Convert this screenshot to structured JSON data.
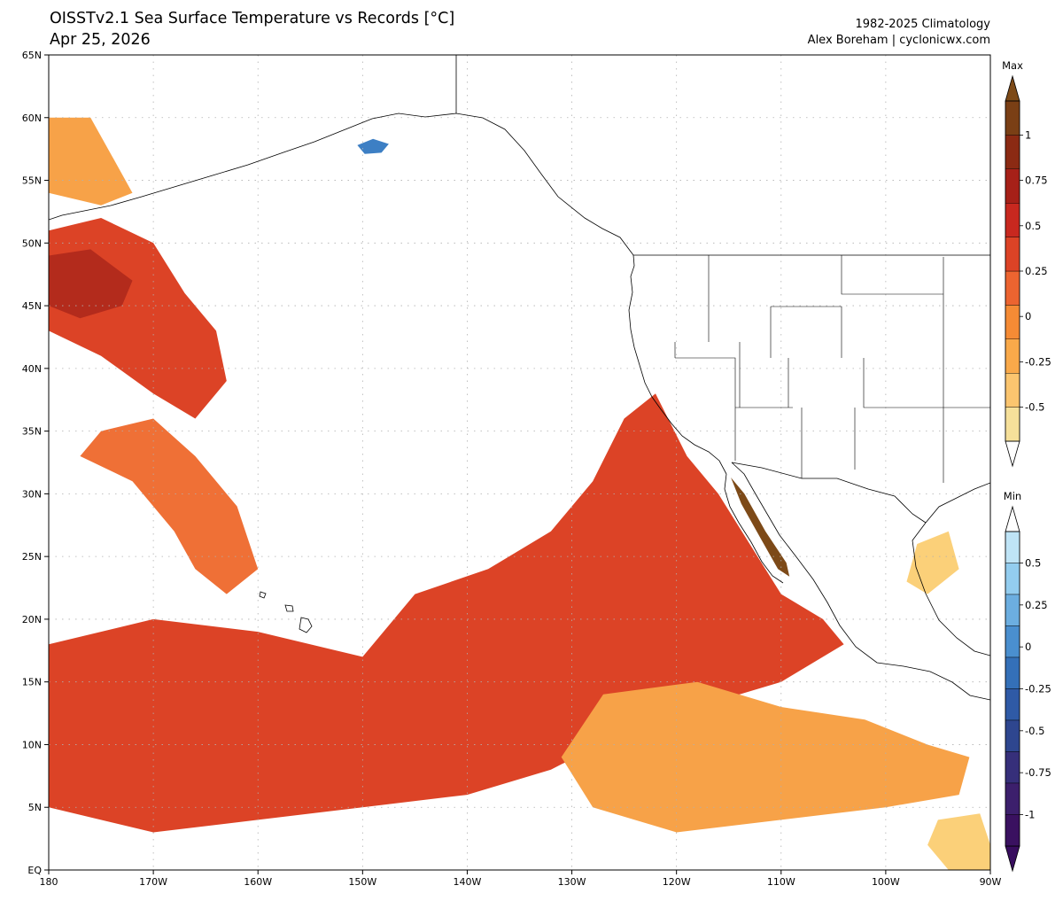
{
  "header": {
    "title": "OISSTv2.1 Sea Surface Temperature vs Records [°C]",
    "date": "Apr 25, 2026",
    "climatology": "1982-2025 Climatology",
    "credit": "Alex Boreham | cyclonicwx.com"
  },
  "map": {
    "projection": "equirectangular",
    "lon_range": [
      -180,
      -90
    ],
    "lat_range": [
      0,
      65
    ],
    "lat_ticks": [
      {
        "value": 65,
        "label": "65N"
      },
      {
        "value": 60,
        "label": "60N"
      },
      {
        "value": 55,
        "label": "55N"
      },
      {
        "value": 50,
        "label": "50N"
      },
      {
        "value": 45,
        "label": "45N"
      },
      {
        "value": 40,
        "label": "40N"
      },
      {
        "value": 35,
        "label": "35N"
      },
      {
        "value": 30,
        "label": "30N"
      },
      {
        "value": 25,
        "label": "25N"
      },
      {
        "value": 20,
        "label": "20N"
      },
      {
        "value": 15,
        "label": "15N"
      },
      {
        "value": 10,
        "label": "10N"
      },
      {
        "value": 5,
        "label": "5N"
      },
      {
        "value": 0,
        "label": "EQ"
      }
    ],
    "lon_ticks": [
      {
        "value": -180,
        "label": "180"
      },
      {
        "value": -170,
        "label": "170W"
      },
      {
        "value": -160,
        "label": "160W"
      },
      {
        "value": -150,
        "label": "150W"
      },
      {
        "value": -140,
        "label": "140W"
      },
      {
        "value": -130,
        "label": "130W"
      },
      {
        "value": -120,
        "label": "120W"
      },
      {
        "value": -110,
        "label": "110W"
      },
      {
        "value": -100,
        "label": "100W"
      },
      {
        "value": -90,
        "label": "90W"
      }
    ],
    "grid": "dotted",
    "regions": [
      {
        "name": "record-warm-mexico-coast",
        "level": "max",
        "shape": [
          [
            -127,
            27
          ],
          [
            -124,
            29
          ],
          [
            -121,
            29
          ],
          [
            -118,
            28
          ],
          [
            -115,
            26
          ],
          [
            -112,
            22
          ],
          [
            -111,
            20
          ],
          [
            -114,
            17
          ],
          [
            -118,
            16
          ],
          [
            -123,
            17
          ],
          [
            -128,
            20
          ],
          [
            -130,
            23
          ],
          [
            -129,
            26
          ]
        ]
      },
      {
        "name": "record-warm-central-pacific",
        "level": "max",
        "shape": [
          [
            -142,
            19
          ],
          [
            -140,
            20
          ],
          [
            -137,
            19
          ],
          [
            -135,
            17
          ],
          [
            -137,
            15.5
          ],
          [
            -141,
            16
          ]
        ]
      },
      {
        "name": "record-warm-gulf-of-california",
        "level": "max",
        "shape": [
          [
            -114.8,
            31.3
          ],
          [
            -113.5,
            30
          ],
          [
            -111.5,
            27
          ],
          [
            -109.5,
            24.5
          ],
          [
            -109.2,
            23.4
          ],
          [
            -110.3,
            24
          ],
          [
            -112,
            26.5
          ],
          [
            -113.8,
            29.2
          ]
        ]
      },
      {
        "name": "near-record-tropical-band",
        "level": 0.6,
        "shape": [
          [
            -180,
            18
          ],
          [
            -170,
            20
          ],
          [
            -160,
            19
          ],
          [
            -150,
            17
          ],
          [
            -145,
            22
          ],
          [
            -138,
            24
          ],
          [
            -132,
            27
          ],
          [
            -128,
            31
          ],
          [
            -125,
            36
          ],
          [
            -122,
            38
          ],
          [
            -119,
            33
          ],
          [
            -116,
            30
          ],
          [
            -113,
            26
          ],
          [
            -110,
            22
          ],
          [
            -106,
            20
          ],
          [
            -104,
            18
          ],
          [
            -110,
            15
          ],
          [
            -118,
            13
          ],
          [
            -125,
            11
          ],
          [
            -132,
            8
          ],
          [
            -140,
            6
          ],
          [
            -150,
            5
          ],
          [
            -160,
            4
          ],
          [
            -170,
            3
          ],
          [
            -180,
            5
          ]
        ]
      },
      {
        "name": "near-record-northwest-pacific",
        "level": 0.6,
        "shape": [
          [
            -180,
            51
          ],
          [
            -175,
            52
          ],
          [
            -170,
            50
          ],
          [
            -167,
            46
          ],
          [
            -164,
            43
          ],
          [
            -163,
            39
          ],
          [
            -166,
            36
          ],
          [
            -170,
            38
          ],
          [
            -175,
            41
          ],
          [
            -180,
            43
          ]
        ]
      },
      {
        "name": "near-record-northwest-pacific-core",
        "level": 0.9,
        "shape": [
          [
            -180,
            49
          ],
          [
            -176,
            49.5
          ],
          [
            -172,
            47
          ],
          [
            -173,
            45
          ],
          [
            -177,
            44
          ],
          [
            -180,
            45
          ]
        ]
      },
      {
        "name": "near-record-central-pacific-band",
        "level": 0.3,
        "shape": [
          [
            -177,
            33
          ],
          [
            -172,
            31
          ],
          [
            -168,
            27
          ],
          [
            -166,
            24
          ],
          [
            -163,
            22
          ],
          [
            -160,
            24
          ],
          [
            -162,
            29
          ],
          [
            -166,
            33
          ],
          [
            -170,
            36
          ],
          [
            -175,
            35
          ]
        ]
      },
      {
        "name": "near-record-equatorial-east",
        "level": 0.0,
        "shape": [
          [
            -127,
            14
          ],
          [
            -118,
            15
          ],
          [
            -110,
            13
          ],
          [
            -102,
            12
          ],
          [
            -96,
            10
          ],
          [
            -92,
            9
          ],
          [
            -93,
            6
          ],
          [
            -100,
            5
          ],
          [
            -110,
            4
          ],
          [
            -120,
            3
          ],
          [
            -128,
            5
          ],
          [
            -131,
            9
          ]
        ]
      },
      {
        "name": "near-record-eastern-equator",
        "level": -0.25,
        "shape": [
          [
            -95,
            4
          ],
          [
            -91,
            4.5
          ],
          [
            -90,
            2
          ],
          [
            -90,
            0
          ],
          [
            -94,
            0
          ],
          [
            -96,
            2
          ]
        ]
      },
      {
        "name": "near-record-bering-coast",
        "level": 0.0,
        "shape": [
          [
            -180,
            60
          ],
          [
            -176,
            60
          ],
          [
            -174,
            57
          ],
          [
            -172,
            54
          ],
          [
            -175,
            53
          ],
          [
            -180,
            54
          ]
        ]
      },
      {
        "name": "near-record-gulf-of-mexico",
        "level": -0.25,
        "shape": [
          [
            -97,
            26
          ],
          [
            -94,
            27
          ],
          [
            -93,
            24
          ],
          [
            -96,
            22
          ],
          [
            -98,
            23
          ]
        ]
      },
      {
        "name": "record-cold-bristol-bay",
        "level": "min",
        "shape": [
          [
            -150.5,
            57.8
          ],
          [
            -149,
            58.3
          ],
          [
            -147.5,
            57.9
          ],
          [
            -148.2,
            57.2
          ],
          [
            -149.8,
            57.1
          ]
        ]
      }
    ]
  },
  "colorbars": {
    "max": {
      "label": "Max",
      "ticks": [
        "1",
        "0.75",
        "0.5",
        "0.25",
        "0",
        "-0.25",
        "-0.5"
      ],
      "colors": [
        "#f6e09a",
        "#fbc56f",
        "#f9a94a",
        "#f58b35",
        "#ec6430",
        "#dc4326",
        "#c8281f",
        "#a62018",
        "#8b2a13",
        "#7a3f15"
      ],
      "over_color": "#7d4a18"
    },
    "min": {
      "label": "Min",
      "ticks": [
        "0.5",
        "0.25",
        "0",
        "-0.25",
        "-0.5",
        "-0.75",
        "-1"
      ],
      "colors": [
        "#bfe4f6",
        "#93cdef",
        "#6caee0",
        "#4a8fcf",
        "#3470b8",
        "#2f5aa6",
        "#2e468f",
        "#362f7a",
        "#3c1f6c",
        "#3a1160"
      ],
      "under_color": "#380d5e"
    }
  },
  "max_level_colors": {
    "-0.25": "#fbd079",
    "0.0": "#f7a248",
    "0.3": "#ef7036",
    "0.6": "#dc4326",
    "0.9": "#b32b1c",
    "max": "#7d4a18",
    "min": "#3d7fc4"
  }
}
